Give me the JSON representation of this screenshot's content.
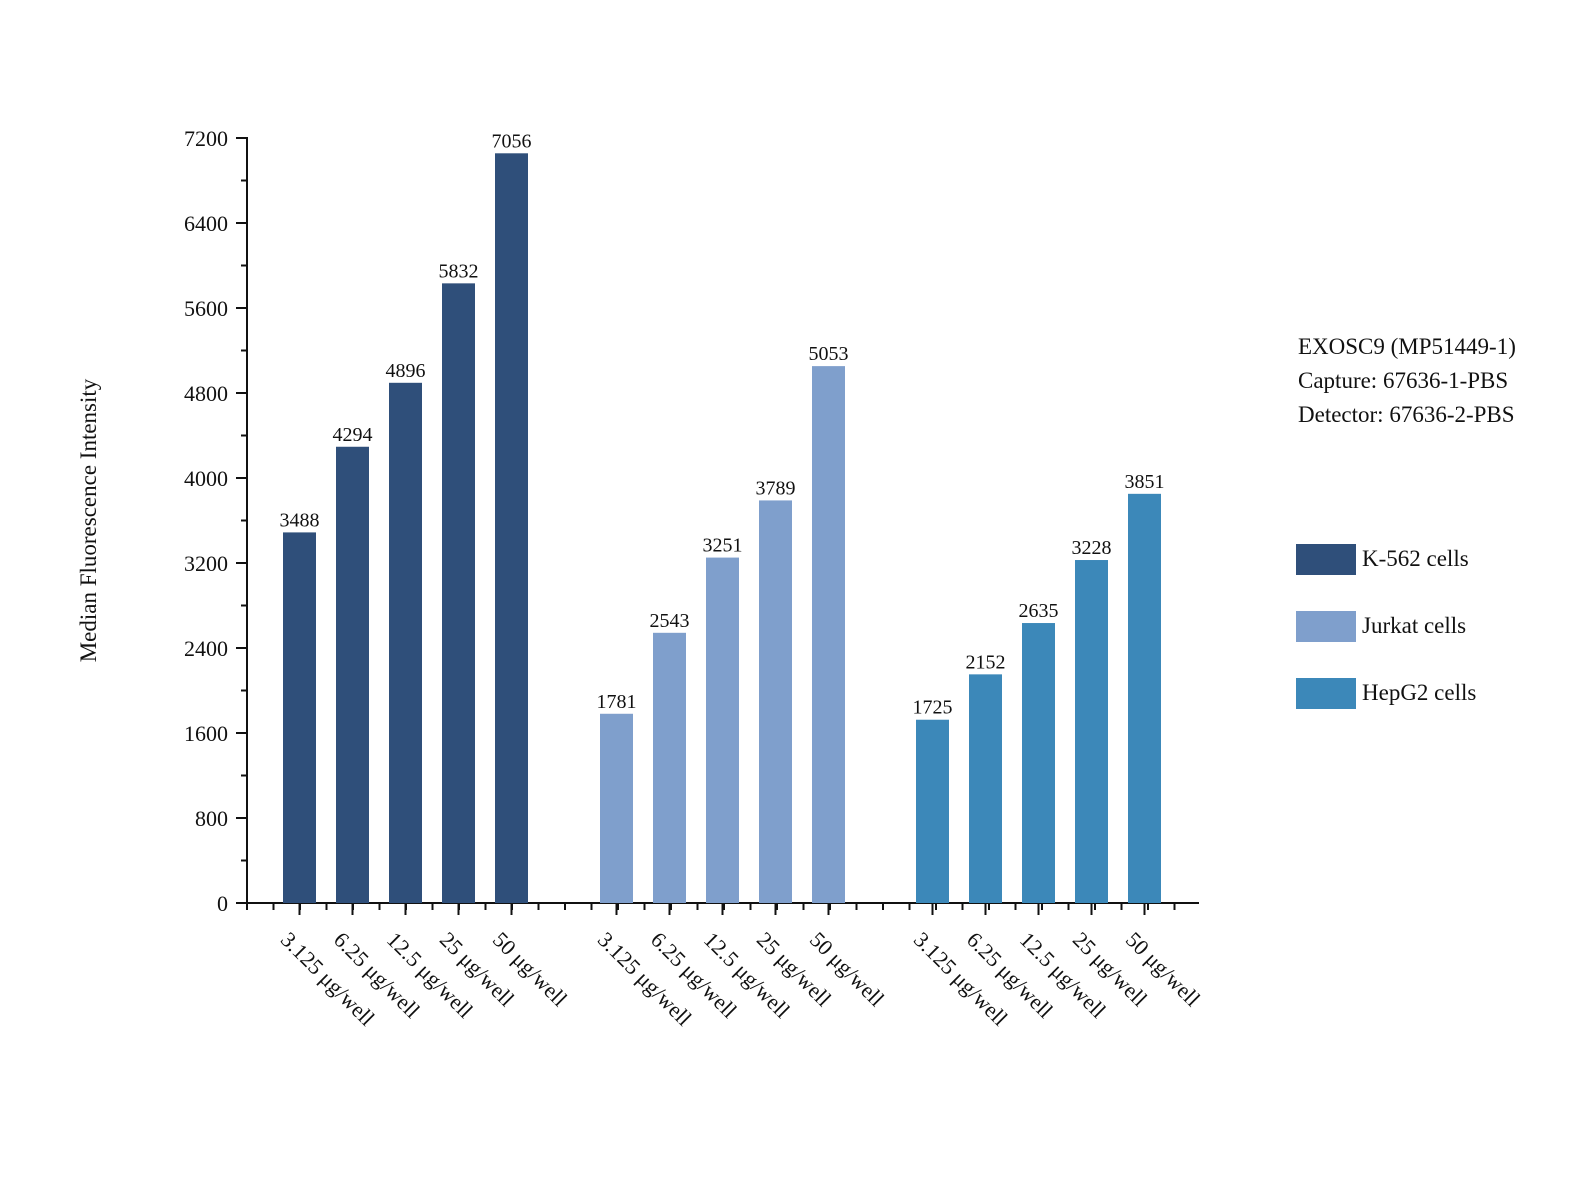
{
  "chart_data": {
    "type": "bar",
    "title": "",
    "xlabel": "",
    "ylabel": "Median Fluorescence Intensity",
    "ylim": [
      0,
      7200
    ],
    "yticks": [
      0,
      800,
      1600,
      2400,
      3200,
      4000,
      4800,
      5600,
      6400,
      7200
    ],
    "grid": false,
    "categories": [
      "3.125 μg/well",
      "6.25 μg/well",
      "12.5 μg/well",
      "25 μg/well",
      "50 μg/well"
    ],
    "series": [
      {
        "name": "K-562 cells",
        "color": "#2f4f7a",
        "values": [
          3488,
          4294,
          4896,
          5832,
          7056
        ]
      },
      {
        "name": "Jurkat cells",
        "color": "#7f9fcc",
        "values": [
          1781,
          2543,
          3251,
          3789,
          5053
        ]
      },
      {
        "name": "HepG2 cells",
        "color": "#3c88b9",
        "values": [
          1725,
          2152,
          2635,
          3228,
          3851
        ]
      }
    ],
    "annotation": [
      "EXOSC9 (MP51449-1)",
      "Capture: 67636-1-PBS",
      "Detector: 67636-2-PBS"
    ],
    "legend_position": "right"
  }
}
